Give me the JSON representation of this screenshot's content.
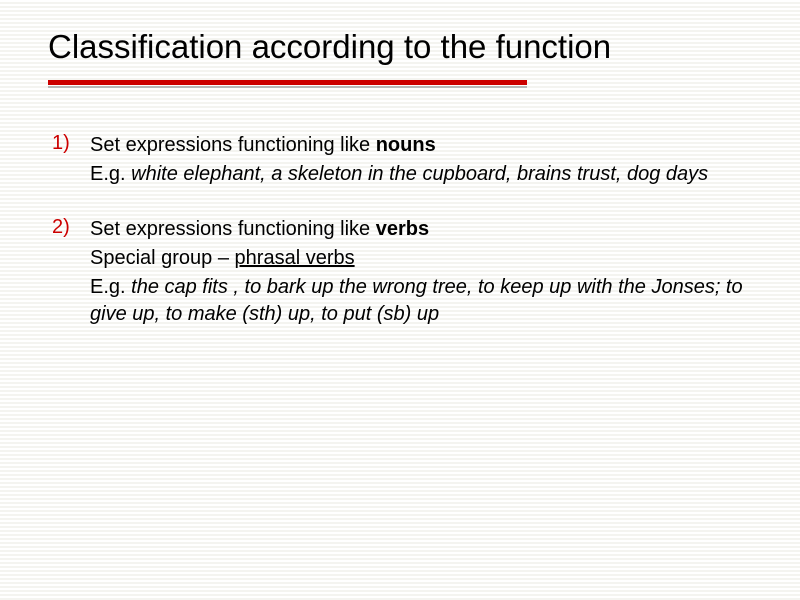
{
  "title": "Classification according to the function",
  "rule": {
    "red": "#cc0000",
    "grey": "#b8b8b8"
  },
  "items": [
    {
      "marker": "1)",
      "lead_plain": "Set expressions functioning  like ",
      "lead_bold": "nouns",
      "sub_eg_label": "E.g. ",
      "sub_eg_italic": "white elephant, a skeleton in the cupboard, brains trust, dog days"
    },
    {
      "marker": "2)",
      "lead_plain": "Set expressions functioning like ",
      "lead_bold": "verbs",
      "sub_special_plain": "Special group – ",
      "sub_special_ul": "phrasal verbs",
      "sub_eg_label": "E.g. ",
      "sub_eg_italic": "the cap fits , to bark up the wrong tree, to keep up with the Jonses; to give up, to make (sth) up, to put (sb) up"
    }
  ]
}
